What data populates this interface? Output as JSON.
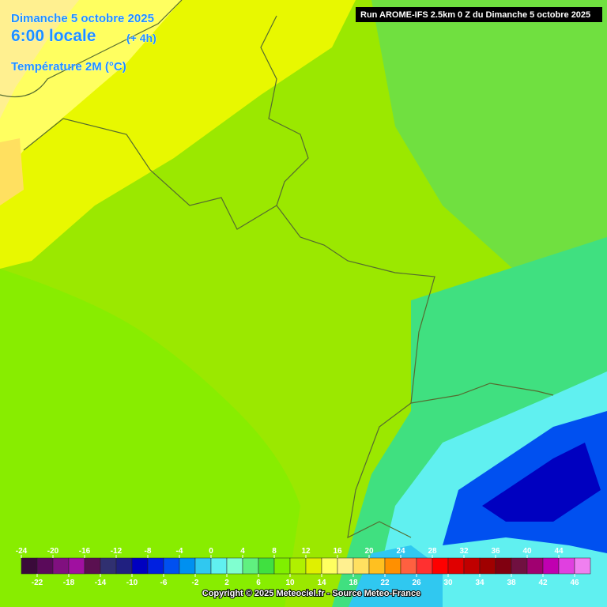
{
  "header": {
    "date": "Dimanche 5 octobre 2025",
    "time": "6:00 locale",
    "offset": "(+ 4h)",
    "field": "Température 2M (°C)",
    "run": "Run AROME-IFS 2.5km 0 Z du Dimanche 5 octobre 2025"
  },
  "legend": {
    "ticks": [
      -24,
      -22,
      -20,
      -18,
      -16,
      -14,
      -12,
      -10,
      -8,
      -6,
      -4,
      -2,
      0,
      2,
      4,
      6,
      8,
      10,
      12,
      14,
      16,
      18,
      20,
      22,
      24,
      26,
      28,
      30,
      32,
      34,
      36,
      38,
      40,
      42,
      44,
      46
    ],
    "colors": [
      "#3a0a3a",
      "#5a0a5a",
      "#80107f",
      "#a010a0",
      "#5a1050",
      "#303070",
      "#202080",
      "#0000c0",
      "#0020e0",
      "#0050f0",
      "#0090f0",
      "#30c8f0",
      "#60f0f0",
      "#80ffd0",
      "#60f080",
      "#40e040",
      "#80f000",
      "#b0f000",
      "#e0f000",
      "#ffff60",
      "#fff090",
      "#ffe060",
      "#ffc020",
      "#ff9000",
      "#ff6040",
      "#ff3030",
      "#ff0000",
      "#e00000",
      "#c00000",
      "#a00000",
      "#800010",
      "#701040",
      "#a00070",
      "#c000b0",
      "#e040e0",
      "#f080f0"
    ]
  },
  "footer": {
    "copyright": "Copyright © 2025 Meteociel.fr - Source Meteo-France"
  }
}
